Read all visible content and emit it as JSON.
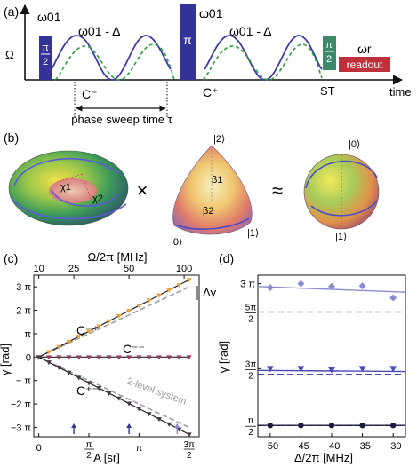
{
  "panel_a": {
    "label": "(a)",
    "y_axis": "Ω",
    "x_axis": "time",
    "pulse_left_top": "π",
    "pulse_left_bottom": "2",
    "pulse_left_freq": "ω01",
    "pulse_mid": "π",
    "pulse_mid_freq": "ω01",
    "pulse_right_top": "π",
    "pulse_right_bottom": "2",
    "detuned_left": "ω01 - Δ",
    "detuned_right": "ω01 - Δ",
    "c_minus": "C⁻",
    "c_plus": "C⁺",
    "sweep": "phase sweep time τ",
    "st": "ST",
    "readout": "readout",
    "readout_freq": "ωr",
    "colors": {
      "pulse": "#33339a",
      "half_pulse": "#3c8a6a",
      "readout": "#c0303a",
      "solid_wave": "#3a3aa8",
      "dashed_wave": "#2e9e3e"
    }
  },
  "panel_b": {
    "label": "(b)",
    "times": "×",
    "approx": "≈",
    "chi1": "χ1",
    "chi2": "χ2",
    "beta1": "β1",
    "beta2": "β2",
    "oct_top": "|2⟩",
    "oct_left": "|0⟩",
    "oct_right": "|1⟩",
    "sph_top": "|0⟩",
    "sph_bottom": "|1⟩"
  },
  "panel_c": {
    "label": "(c)",
    "top_axis_label": "Ω/2π [MHz]",
    "top_ticks": [
      "10",
      "25",
      "50",
      "100"
    ],
    "ylabel": "γ [rad]",
    "xlabel": "A [sr]",
    "ytick_labels": [
      "3 π",
      "2 π",
      "π",
      "0",
      "− π",
      "−2 π",
      "−3 π"
    ],
    "xtick_labels": [
      {
        "top": "",
        "bot": "0"
      },
      {
        "top": "π",
        "bot": "2"
      },
      {
        "top": "π",
        "bot": ""
      },
      {
        "top": "3π",
        "bot": "2"
      }
    ],
    "delta_gamma": "Δγ",
    "curve_labels": {
      "cpp": "C⁻⁺",
      "cmm": "C⁻⁻",
      "cpm": "C⁺⁻"
    },
    "two_level": "2-level system",
    "chart_data": {
      "type": "scatter",
      "x_unit": "π sr",
      "y_unit": "π rad",
      "xlim": [
        -0.05,
        1.6
      ],
      "ylim": [
        -3.4,
        3.5
      ],
      "top_axis_ticks_MHz": [
        10,
        25,
        50,
        100
      ],
      "series": [
        {
          "name": "C⁻⁺",
          "color": "#e8a23a",
          "x": [
            0,
            0.1,
            0.2,
            0.3,
            0.4,
            0.5,
            0.6,
            0.7,
            0.8,
            0.9,
            1.0,
            1.1,
            1.2,
            1.3,
            1.4,
            1.5
          ],
          "y": [
            0,
            0.22,
            0.44,
            0.66,
            0.88,
            1.1,
            1.32,
            1.54,
            1.76,
            1.98,
            2.2,
            2.42,
            2.64,
            2.86,
            3.08,
            3.3
          ]
        },
        {
          "name": "C⁻⁻",
          "color": "#9a3a6a",
          "x": [
            0,
            0.1,
            0.2,
            0.3,
            0.4,
            0.5,
            0.6,
            0.7,
            0.8,
            0.9,
            1.0,
            1.1,
            1.2,
            1.3,
            1.4,
            1.5
          ],
          "y": [
            0,
            0,
            0,
            0,
            0,
            0,
            0,
            0,
            0,
            0,
            0,
            0,
            0,
            0,
            0,
            0
          ]
        },
        {
          "name": "C⁺⁻",
          "color": "#4a3a48",
          "x": [
            0,
            0.1,
            0.2,
            0.3,
            0.4,
            0.5,
            0.6,
            0.7,
            0.8,
            0.9,
            1.0,
            1.1,
            1.2,
            1.3,
            1.4,
            1.5
          ],
          "y": [
            0,
            -0.22,
            -0.44,
            -0.66,
            -0.88,
            -1.1,
            -1.32,
            -1.54,
            -1.76,
            -1.98,
            -2.2,
            -2.42,
            -2.64,
            -2.86,
            -3.08,
            -3.3
          ]
        }
      ],
      "reference_lines": [
        {
          "name": "2-level system",
          "slope": 2,
          "x_range": [
            0,
            1.5
          ],
          "y_range": [
            0,
            3
          ],
          "color": "#a0a0a0"
        },
        {
          "slope": -2,
          "x_range": [
            0,
            1.5
          ],
          "y_range": [
            0,
            -3
          ],
          "color": "#a0a0a0"
        }
      ],
      "markers_x": [
        0.35,
        0.9,
        1.38
      ]
    }
  },
  "panel_d": {
    "label": "(d)",
    "ylabel": "γ [rad]",
    "xlabel": "Δ/2π [MHz]",
    "xtick_labels": [
      "−50",
      "−45",
      "−40",
      "−35",
      "−30"
    ],
    "ytick_labels": [
      {
        "top": "3 π",
        "bot": ""
      },
      {
        "top": "5π",
        "bot": "2"
      },
      {
        "top": "3π",
        "bot": "2"
      },
      {
        "top": "π",
        "bot": "2"
      }
    ],
    "chart_data": {
      "type": "scatter",
      "x_unit": "MHz",
      "y_unit": "π rad",
      "xlim": [
        -52,
        -28
      ],
      "ylim": [
        0.3,
        3.15
      ],
      "series": [
        {
          "marker": "diamond",
          "color": "#8a8ad0",
          "x": [
            -50,
            -45,
            -40,
            -35,
            -30
          ],
          "y": [
            2.93,
            3.0,
            2.95,
            2.96,
            2.75
          ],
          "fit": [
            2.95,
            2.85
          ],
          "expected": 2.5
        },
        {
          "marker": "triangle",
          "color": "#4a4ab8",
          "x": [
            -50,
            -45,
            -40,
            -35,
            -30
          ],
          "y": [
            1.5,
            1.5,
            1.48,
            1.5,
            1.5
          ],
          "fit": [
            1.47,
            1.45
          ],
          "expected": 1.4
        },
        {
          "marker": "circle",
          "color": "#1a1a40",
          "x": [
            -50,
            -45,
            -40,
            -35,
            -30
          ],
          "y": [
            0.5,
            0.5,
            0.5,
            0.5,
            0.5
          ],
          "fit": [
            0.5,
            0.5
          ],
          "expected": 0.5
        }
      ]
    }
  }
}
